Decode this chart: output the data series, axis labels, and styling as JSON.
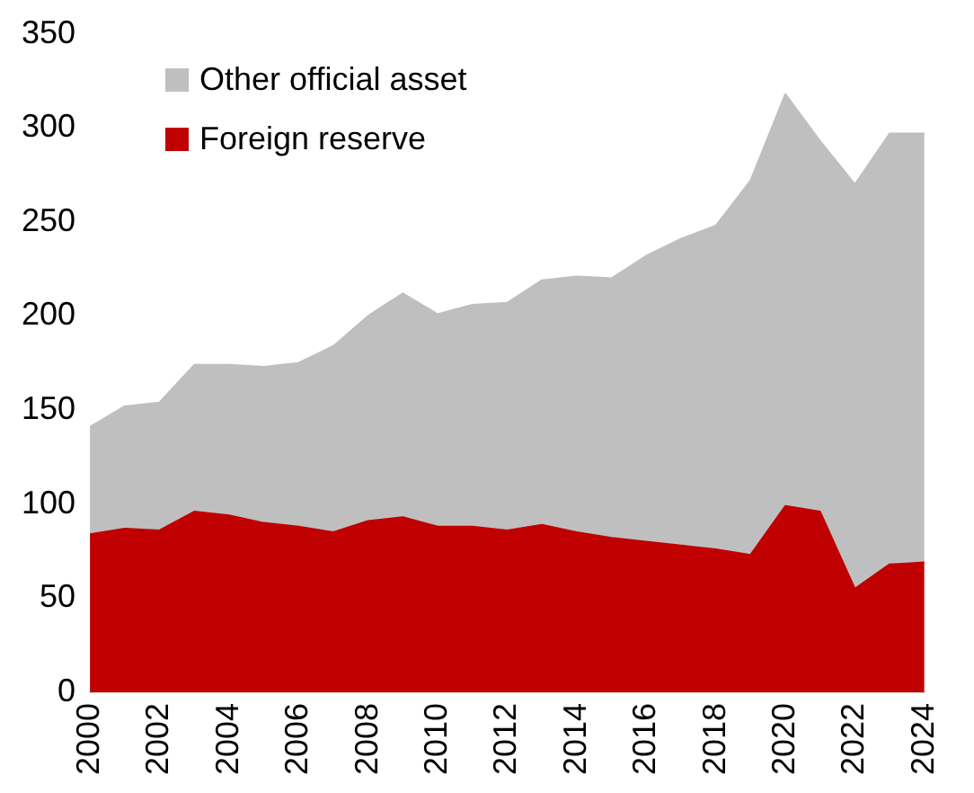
{
  "chart_data": {
    "type": "area",
    "stacked": true,
    "categories": [
      "2000",
      null,
      "2002",
      null,
      "2004",
      null,
      "2006",
      null,
      "2008",
      null,
      "2010",
      null,
      "2012",
      null,
      "2014",
      null,
      "2016",
      null,
      "2018",
      null,
      "2020",
      null,
      "2022",
      null,
      "2024"
    ],
    "series": [
      {
        "name": "Foreign reserve",
        "color": "#c00000",
        "values": [
          84,
          87,
          86,
          96,
          94,
          90,
          88,
          85,
          91,
          93,
          88,
          88,
          86,
          89,
          85,
          82,
          80,
          78,
          76,
          73,
          99,
          96,
          55,
          68,
          69
        ]
      },
      {
        "name": "Other official asset",
        "color": "#bfbfbf",
        "values": [
          57,
          65,
          68,
          78,
          80,
          83,
          87,
          99,
          109,
          119,
          113,
          118,
          121,
          130,
          136,
          138,
          152,
          163,
          172,
          199,
          219,
          197,
          215,
          229,
          228
        ]
      }
    ],
    "ylim": [
      0,
      350
    ],
    "yticks": [
      0,
      50,
      100,
      150,
      200,
      250,
      300,
      350
    ],
    "grid": false,
    "legend": "top left"
  }
}
